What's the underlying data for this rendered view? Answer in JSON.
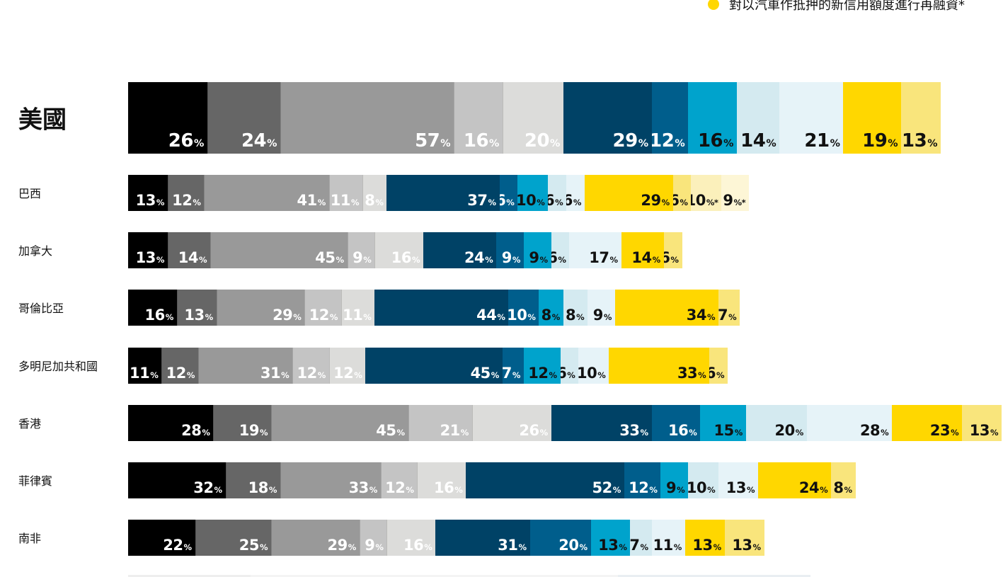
{
  "legend": {
    "label": "對以汽車作抵押的新信用額度進行再融資*",
    "color": "#FFD700"
  },
  "chart_data": {
    "type": "bar",
    "orientation": "horizontal",
    "stacked": true,
    "value_suffix": "%",
    "segment_colors": [
      "#000000",
      "#666666",
      "#999999",
      "#C4C4C4",
      "#DCDCDA",
      "#004266",
      "#005E8C",
      "#00A3CC",
      "#D4EAF0",
      "#E6F3F8",
      "#FFD700",
      "#F9E57C",
      "#FBF0BB",
      "#FDF6D6"
    ],
    "text_colors": [
      "#ffffff",
      "#ffffff",
      "#ffffff",
      "#ffffff",
      "#ffffff",
      "#ffffff",
      "#ffffff",
      "#111111",
      "#111111",
      "#111111",
      "#111111",
      "#111111",
      "#111111",
      "#111111"
    ],
    "rows": [
      {
        "name": "美國",
        "values": [
          26,
          24,
          57,
          16,
          20,
          29,
          12,
          16,
          14,
          21,
          19,
          13
        ],
        "suffix": [
          "",
          "",
          "",
          "",
          "",
          "",
          "",
          "",
          "",
          "",
          "",
          ""
        ]
      },
      {
        "name": "巴西",
        "values": [
          13,
          12,
          41,
          11,
          8,
          37,
          6,
          10,
          6,
          6,
          29,
          6,
          10,
          9
        ],
        "suffix": [
          "",
          "",
          "",
          "",
          "",
          "",
          "",
          "",
          "",
          "",
          "",
          "",
          "*",
          "*"
        ]
      },
      {
        "name": "加拿大",
        "values": [
          13,
          14,
          45,
          9,
          16,
          24,
          9,
          9,
          6,
          17,
          14,
          6
        ],
        "suffix": [
          "",
          "",
          "",
          "",
          "",
          "",
          "",
          "",
          "",
          "",
          "",
          ""
        ]
      },
      {
        "name": "哥倫比亞",
        "values": [
          16,
          13,
          29,
          12,
          11,
          44,
          10,
          8,
          8,
          9,
          34,
          7
        ],
        "suffix": [
          "",
          "",
          "",
          "",
          "",
          "",
          "",
          "",
          "",
          "",
          "",
          ""
        ]
      },
      {
        "name": "多明尼加共和國",
        "values": [
          11,
          12,
          31,
          12,
          12,
          45,
          7,
          12,
          6,
          10,
          33,
          6
        ],
        "suffix": [
          "",
          "",
          "",
          "",
          "",
          "",
          "",
          "",
          "",
          "",
          "",
          ""
        ]
      },
      {
        "name": "香港",
        "values": [
          28,
          19,
          45,
          21,
          26,
          33,
          16,
          15,
          20,
          28,
          23,
          13
        ],
        "suffix": [
          "",
          "",
          "",
          "",
          "",
          "",
          "",
          "",
          "",
          "",
          "",
          ""
        ]
      },
      {
        "name": "菲律賓",
        "values": [
          32,
          18,
          33,
          12,
          16,
          52,
          12,
          9,
          10,
          13,
          24,
          8
        ],
        "suffix": [
          "",
          "",
          "",
          "",
          "",
          "",
          "",
          "",
          "",
          "",
          "",
          ""
        ]
      },
      {
        "name": "南非",
        "values": [
          22,
          25,
          29,
          9,
          16,
          31,
          20,
          13,
          7,
          11,
          13,
          13
        ],
        "suffix": [
          "",
          "",
          "",
          "",
          "",
          "",
          "",
          "",
          "",
          "",
          "",
          ""
        ]
      }
    ]
  }
}
